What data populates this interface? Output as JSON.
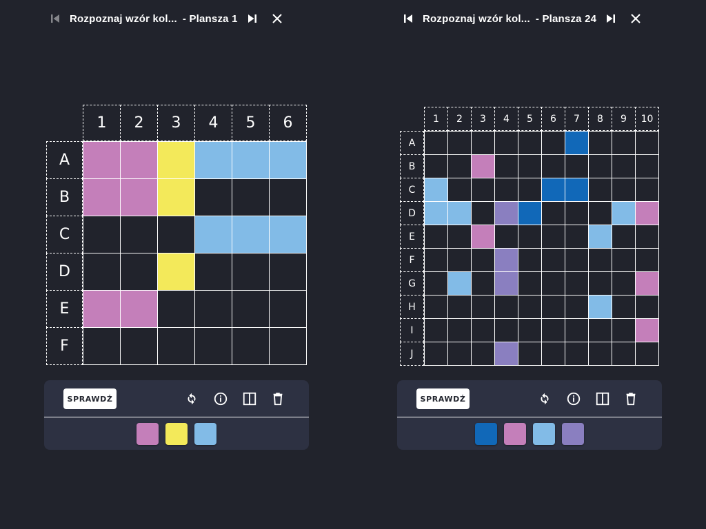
{
  "colors": {
    "pink": "#c47fba",
    "yellow": "#f3e95a",
    "light_blue": "#82bbe7",
    "dark_blue": "#1168b8",
    "purple": "#8a7fc0",
    "empty": "#21232c"
  },
  "icons": {
    "first": "skip-previous-icon",
    "last": "skip-next-icon",
    "close": "close-icon",
    "reset": "refresh-icon",
    "info": "info-icon",
    "columns": "split-view-icon",
    "delete": "trash-icon"
  },
  "panels": [
    {
      "title": "Rozpoznaj wzór kol...",
      "board_label": "- Plansza 1",
      "check_label": "SPRAWDŹ",
      "columns": [
        "1",
        "2",
        "3",
        "4",
        "5",
        "6"
      ],
      "rows": [
        "A",
        "B",
        "C",
        "D",
        "E",
        "F"
      ],
      "grid": [
        [
          "pink",
          "pink",
          "yellow",
          "light_blue",
          "light_blue",
          "light_blue"
        ],
        [
          "pink",
          "pink",
          "yellow",
          "",
          "",
          ""
        ],
        [
          "",
          "",
          "",
          "light_blue",
          "light_blue",
          "light_blue"
        ],
        [
          "",
          "",
          "yellow",
          "",
          "",
          ""
        ],
        [
          "pink",
          "pink",
          "",
          "",
          "",
          ""
        ],
        [
          "",
          "",
          "",
          "",
          "",
          ""
        ]
      ],
      "palette": [
        "pink",
        "yellow",
        "light_blue"
      ]
    },
    {
      "title": "Rozpoznaj wzór kol...",
      "board_label": "- Plansza 24",
      "check_label": "SPRAWDŹ",
      "columns": [
        "1",
        "2",
        "3",
        "4",
        "5",
        "6",
        "7",
        "8",
        "9",
        "10"
      ],
      "rows": [
        "A",
        "B",
        "C",
        "D",
        "E",
        "F",
        "G",
        "H",
        "I",
        "J"
      ],
      "grid": [
        [
          "",
          "",
          "",
          "",
          "",
          "",
          "dark_blue",
          "",
          "",
          ""
        ],
        [
          "",
          "",
          "pink",
          "",
          "",
          "",
          "",
          "",
          "",
          ""
        ],
        [
          "light_blue",
          "",
          "",
          "",
          "",
          "dark_blue",
          "dark_blue",
          "",
          "",
          ""
        ],
        [
          "light_blue",
          "light_blue",
          "",
          "purple",
          "dark_blue",
          "",
          "",
          "",
          "light_blue",
          "pink"
        ],
        [
          "",
          "",
          "pink",
          "",
          "",
          "",
          "",
          "light_blue",
          "",
          ""
        ],
        [
          "",
          "",
          "",
          "purple",
          "",
          "",
          "",
          "",
          "",
          ""
        ],
        [
          "",
          "light_blue",
          "",
          "purple",
          "",
          "",
          "",
          "",
          "",
          "pink"
        ],
        [
          "",
          "",
          "",
          "",
          "",
          "",
          "",
          "light_blue",
          "",
          ""
        ],
        [
          "",
          "",
          "",
          "",
          "",
          "",
          "",
          "",
          "",
          "pink"
        ],
        [
          "",
          "",
          "",
          "purple",
          "",
          "",
          "",
          "",
          "",
          ""
        ]
      ],
      "palette": [
        "dark_blue",
        "pink",
        "light_blue",
        "purple"
      ]
    }
  ]
}
